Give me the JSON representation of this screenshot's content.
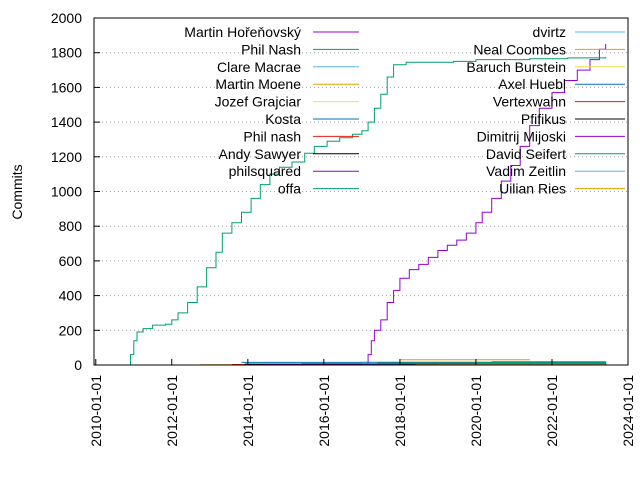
{
  "chart_data": {
    "type": "line",
    "ylabel": "Commits",
    "xlabel": "",
    "ylim": [
      0,
      2000
    ],
    "xlim": [
      "2009-12-15",
      "2024-01-01"
    ],
    "grid": "horizontal dotted",
    "y_ticks": [
      0,
      200,
      400,
      600,
      800,
      1000,
      1200,
      1400,
      1600,
      1800,
      2000
    ],
    "x_ticks": [
      "2010-01-01",
      "2012-01-01",
      "2014-01-01",
      "2016-01-01",
      "2018-01-01",
      "2020-01-01",
      "2022-01-01",
      "2024-01-01"
    ],
    "legend_placement": "inside, two columns, top",
    "series": [
      {
        "name": "Martin Hořeňovský",
        "color": "#9400d3",
        "points": [
          [
            "2017-02-01",
            0
          ],
          [
            "2017-03-01",
            60
          ],
          [
            "2017-04-01",
            140
          ],
          [
            "2017-05-01",
            200
          ],
          [
            "2017-07-01",
            260
          ],
          [
            "2017-09-01",
            360
          ],
          [
            "2017-11-01",
            430
          ],
          [
            "2018-01-01",
            500
          ],
          [
            "2018-04-01",
            550
          ],
          [
            "2018-07-01",
            580
          ],
          [
            "2018-10-01",
            620
          ],
          [
            "2019-01-01",
            660
          ],
          [
            "2019-04-01",
            690
          ],
          [
            "2019-07-01",
            720
          ],
          [
            "2019-10-01",
            760
          ],
          [
            "2020-01-01",
            820
          ],
          [
            "2020-03-01",
            880
          ],
          [
            "2020-06-01",
            960
          ],
          [
            "2020-09-01",
            1060
          ],
          [
            "2020-12-01",
            1150
          ],
          [
            "2021-03-01",
            1260
          ],
          [
            "2021-06-01",
            1380
          ],
          [
            "2021-09-01",
            1480
          ],
          [
            "2022-01-01",
            1570
          ],
          [
            "2022-05-01",
            1640
          ],
          [
            "2022-09-01",
            1700
          ],
          [
            "2023-01-01",
            1760
          ],
          [
            "2023-04-01",
            1820
          ],
          [
            "2023-06-01",
            1850
          ]
        ]
      },
      {
        "name": "Phil Nash",
        "color": "#009e73",
        "points": [
          [
            "2010-11-01",
            0
          ],
          [
            "2010-12-01",
            60
          ],
          [
            "2011-01-01",
            140
          ],
          [
            "2011-02-01",
            190
          ],
          [
            "2011-04-01",
            210
          ],
          [
            "2011-07-01",
            230
          ],
          [
            "2011-11-01",
            235
          ],
          [
            "2012-01-01",
            260
          ],
          [
            "2012-03-01",
            300
          ],
          [
            "2012-06-01",
            360
          ],
          [
            "2012-09-01",
            450
          ],
          [
            "2012-12-01",
            560
          ],
          [
            "2013-03-01",
            650
          ],
          [
            "2013-05-01",
            760
          ],
          [
            "2013-08-01",
            820
          ],
          [
            "2013-11-01",
            880
          ],
          [
            "2014-02-01",
            960
          ],
          [
            "2014-05-01",
            1040
          ],
          [
            "2014-08-01",
            1100
          ],
          [
            "2014-11-01",
            1140
          ],
          [
            "2015-03-01",
            1170
          ],
          [
            "2015-07-01",
            1220
          ],
          [
            "2015-10-01",
            1260
          ],
          [
            "2016-02-01",
            1290
          ],
          [
            "2016-06-01",
            1310
          ],
          [
            "2016-10-01",
            1330
          ],
          [
            "2017-01-01",
            1350
          ],
          [
            "2017-03-01",
            1400
          ],
          [
            "2017-05-01",
            1480
          ],
          [
            "2017-07-01",
            1560
          ],
          [
            "2017-09-01",
            1660
          ],
          [
            "2017-11-01",
            1730
          ],
          [
            "2018-03-01",
            1745
          ],
          [
            "2019-06-01",
            1750
          ],
          [
            "2020-01-01",
            1760
          ],
          [
            "2021-06-01",
            1765
          ],
          [
            "2022-06-01",
            1770
          ],
          [
            "2023-06-01",
            1775
          ]
        ]
      },
      {
        "name": "Clare Macrae",
        "color": "#56b4e9",
        "points": [
          [
            "2020-06-01",
            20
          ],
          [
            "2023-06-01",
            22
          ]
        ]
      },
      {
        "name": "Martin Moene",
        "color": "#e69f00",
        "points": [
          [
            "2012-10-01",
            2
          ],
          [
            "2015-06-01",
            8
          ],
          [
            "2017-06-01",
            12
          ],
          [
            "2023-06-01",
            14
          ]
        ]
      },
      {
        "name": "Jozef Grajciar",
        "color": "#f0e442",
        "points": [
          [
            "2017-01-01",
            4
          ],
          [
            "2023-06-01",
            6
          ]
        ]
      },
      {
        "name": "Kosta",
        "color": "#0072b2",
        "points": [
          [
            "2013-11-01",
            15
          ],
          [
            "2017-01-01",
            16
          ],
          [
            "2023-06-01",
            18
          ]
        ]
      },
      {
        "name": "Phil nash",
        "color": "#e51e10",
        "points": [
          [
            "2013-08-01",
            3
          ],
          [
            "2023-06-01",
            10
          ]
        ]
      },
      {
        "name": "Andy Sawyer",
        "color": "#000000",
        "points": [
          [
            "2013-12-01",
            5
          ],
          [
            "2023-06-01",
            7
          ]
        ]
      },
      {
        "name": "philsquared",
        "color": "#9400d3",
        "points": [
          [
            "2014-06-01",
            2
          ],
          [
            "2023-06-01",
            4
          ]
        ]
      },
      {
        "name": "offa",
        "color": "#009e73",
        "points": [
          [
            "2017-06-01",
            10
          ],
          [
            "2020-01-01",
            14
          ],
          [
            "2023-06-01",
            16
          ]
        ]
      },
      {
        "name": "dvirtz",
        "color": "#56b4e9",
        "points": [
          [
            "2018-06-01",
            3
          ],
          [
            "2023-06-01",
            4
          ]
        ]
      },
      {
        "name": "Neal Coombes",
        "color": "#e69f00",
        "points": [
          [
            "2018-01-01",
            30
          ],
          [
            "2021-06-01",
            32
          ]
        ]
      },
      {
        "name": "Baruch Burstein",
        "color": "#f0e442",
        "points": [
          [
            "2018-01-01",
            2
          ],
          [
            "2023-06-01",
            3
          ]
        ]
      },
      {
        "name": "Axel Huebl",
        "color": "#0072b2",
        "points": [
          [
            "2017-01-01",
            1
          ],
          [
            "2023-06-01",
            2
          ]
        ]
      },
      {
        "name": "Vertexwahn",
        "color": "#e51e10",
        "points": [
          [
            "2018-06-01",
            1
          ],
          [
            "2023-06-01",
            2
          ]
        ]
      },
      {
        "name": "Pfifikus",
        "color": "#000000",
        "points": [
          [
            "2018-01-01",
            1
          ],
          [
            "2023-06-01",
            1
          ]
        ]
      },
      {
        "name": "Dimitrij Mijoski",
        "color": "#9400d3",
        "points": [
          [
            "2019-06-01",
            1
          ],
          [
            "2023-06-01",
            2
          ]
        ]
      },
      {
        "name": "David Seifert",
        "color": "#009e73",
        "points": [
          [
            "2018-06-01",
            1
          ],
          [
            "2023-06-01",
            2
          ]
        ]
      },
      {
        "name": "Vadim Zeitlin",
        "color": "#56b4e9",
        "points": [
          [
            "2019-01-01",
            1
          ],
          [
            "2023-06-01",
            2
          ]
        ]
      },
      {
        "name": "Uilian Ries",
        "color": "#e69f00",
        "points": [
          [
            "2018-06-01",
            1
          ],
          [
            "2023-06-01",
            2
          ]
        ]
      }
    ]
  }
}
